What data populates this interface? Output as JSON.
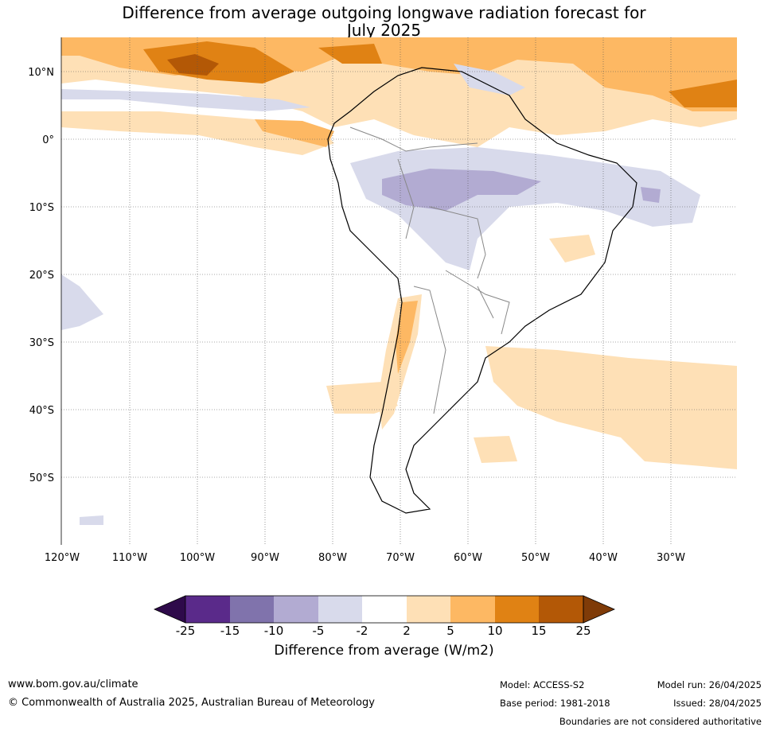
{
  "title_line1": "Difference from average outgoing longwave radiation forecast for",
  "title_line2": "July 2025",
  "lat_labels": [
    "10°N",
    "0°",
    "10°S",
    "20°S",
    "30°S",
    "40°S",
    "50°S"
  ],
  "lon_labels": [
    "120°W",
    "110°W",
    "100°W",
    "90°W",
    "80°W",
    "70°W",
    "60°W",
    "50°W",
    "40°W",
    "30°W"
  ],
  "colorbar": {
    "ticks": [
      "-25",
      "-15",
      "-10",
      "-5",
      "-2",
      "2",
      "5",
      "10",
      "15",
      "25"
    ],
    "colors": {
      "below_min": "#2e0a4a",
      "m25_m15": "#5a2a8a",
      "m15_m10": "#8073ac",
      "m10_m5": "#b2abd2",
      "m5_m2": "#d8daeb",
      "m2_p2": "#ffffff",
      "p2_p5": "#fee0b6",
      "p5_p10": "#fdb863",
      "p10_p15": "#e08214",
      "p15_p25": "#b35806",
      "above_max": "#7f3b08"
    },
    "title": "Difference from average (W/m2)"
  },
  "footer": {
    "url": "www.bom.gov.au/climate",
    "copyright": "© Commonwealth of Australia 2025, Australian Bureau of Meteorology",
    "model": "Model: ACCESS-S2",
    "base_period": "Base period: 1981-2018",
    "model_run": "Model run: 26/04/2025",
    "issued": "Issued: 28/04/2025",
    "boundaries": "Boundaries are not considered authoritative"
  }
}
